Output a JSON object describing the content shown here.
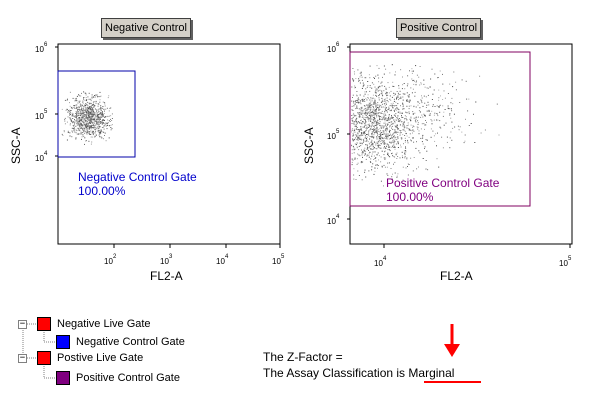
{
  "plots": [
    {
      "id": "negative",
      "title": "Negative Control",
      "y_label": "SSC-A",
      "x_label": "FL2-A",
      "x_ticks": [
        {
          "base": "10",
          "exp": "2"
        },
        {
          "base": "10",
          "exp": "3"
        },
        {
          "base": "10",
          "exp": "4"
        },
        {
          "base": "10",
          "exp": "5"
        }
      ],
      "y_ticks": [
        {
          "base": "10",
          "exp": "6"
        },
        {
          "base": "10",
          "exp": "5"
        },
        {
          "base": "10",
          "exp": "4"
        }
      ],
      "gate_label": "Negative Control Gate",
      "gate_percent": "100.00%",
      "gate_color": "#0000cc"
    },
    {
      "id": "positive",
      "title": "Positive Control",
      "y_label": "SSC-A",
      "x_label": "FL2-A",
      "x_ticks": [
        {
          "base": "10",
          "exp": "4"
        },
        {
          "base": "10",
          "exp": "5"
        }
      ],
      "y_ticks": [
        {
          "base": "10",
          "exp": "6"
        },
        {
          "base": "10",
          "exp": "5"
        },
        {
          "base": "10",
          "exp": "4"
        }
      ],
      "gate_label": "Positive Control Gate",
      "gate_percent": "100.00%",
      "gate_color": "#800080"
    }
  ],
  "legend": {
    "items": [
      {
        "label": "Negative Live Gate",
        "color": "#ff0000",
        "level": 0,
        "expander": "−"
      },
      {
        "label": "Negative Control Gate",
        "color": "#0000ff",
        "level": 1
      },
      {
        "label": "Postive Live Gate",
        "color": "#ff0000",
        "level": 0,
        "expander": "−"
      },
      {
        "label": "Positive Control Gate",
        "color": "#800080",
        "level": 1
      }
    ]
  },
  "result": {
    "z_factor_text": "The Z-Factor =",
    "classification_prefix": "The Assay Classification is",
    "classification_value": "Marginal",
    "accent_color": "#ff0000"
  }
}
